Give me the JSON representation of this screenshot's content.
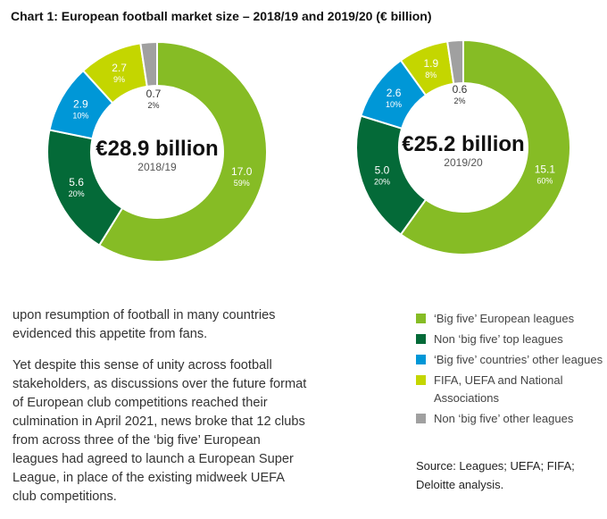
{
  "title": "Chart 1: European football market size – 2018/19 and 2019/20 (€ billion)",
  "colors": {
    "big_five": "#86bc25",
    "non_big_five_top": "#046a38",
    "big_five_countries_other": "#0097d7",
    "fifa_uefa_national": "#c4d600",
    "non_big_five_other": "#a0a0a0"
  },
  "chart_data": [
    {
      "type": "pie",
      "donut": true,
      "center_value": "€28.9 billion",
      "center_label": "2018/19",
      "slices": [
        {
          "key": "big_five",
          "value": 17.0,
          "value_label": "17.0",
          "pct_label": "59%"
        },
        {
          "key": "non_big_five_top",
          "value": 5.6,
          "value_label": "5.6",
          "pct_label": "20%"
        },
        {
          "key": "big_five_countries_other",
          "value": 2.9,
          "value_label": "2.9",
          "pct_label": "10%"
        },
        {
          "key": "fifa_uefa_national",
          "value": 2.7,
          "value_label": "2.7",
          "pct_label": "9%"
        },
        {
          "key": "non_big_five_other",
          "value": 0.7,
          "value_label": "0.7",
          "pct_label": "2%"
        }
      ]
    },
    {
      "type": "pie",
      "donut": true,
      "center_value": "€25.2 billion",
      "center_label": "2019/20",
      "slices": [
        {
          "key": "big_five",
          "value": 15.1,
          "value_label": "15.1",
          "pct_label": "60%"
        },
        {
          "key": "non_big_five_top",
          "value": 5.0,
          "value_label": "5.0",
          "pct_label": "20%"
        },
        {
          "key": "big_five_countries_other",
          "value": 2.6,
          "value_label": "2.6",
          "pct_label": "10%"
        },
        {
          "key": "fifa_uefa_national",
          "value": 1.9,
          "value_label": "1.9",
          "pct_label": "8%"
        },
        {
          "key": "non_big_five_other",
          "value": 0.6,
          "value_label": "0.6",
          "pct_label": "2%"
        }
      ]
    }
  ],
  "legend": [
    {
      "key": "big_five",
      "label": "‘Big five’ European leagues"
    },
    {
      "key": "non_big_five_top",
      "label": "Non ‘big five’ top leagues"
    },
    {
      "key": "big_five_countries_other",
      "label": "‘Big five’ countries’ other leagues"
    },
    {
      "key": "fifa_uefa_national",
      "label": "FIFA, UEFA and National Associations"
    },
    {
      "key": "non_big_five_other",
      "label": "Non ‘big five’ other leagues"
    }
  ],
  "body_paragraphs": [
    "upon resumption of football in many countries evidenced this appetite from fans.",
    "Yet despite this sense of unity across football stakeholders, as discussions over the future format of European club competitions reached their culmination in April 2021, news broke that 12 clubs from across three of the ‘big five’ European leagues had agreed to launch a European Super League, in place of the existing midweek UEFA club competitions."
  ],
  "source": "Source: Leagues; UEFA; FIFA; Deloitte analysis."
}
